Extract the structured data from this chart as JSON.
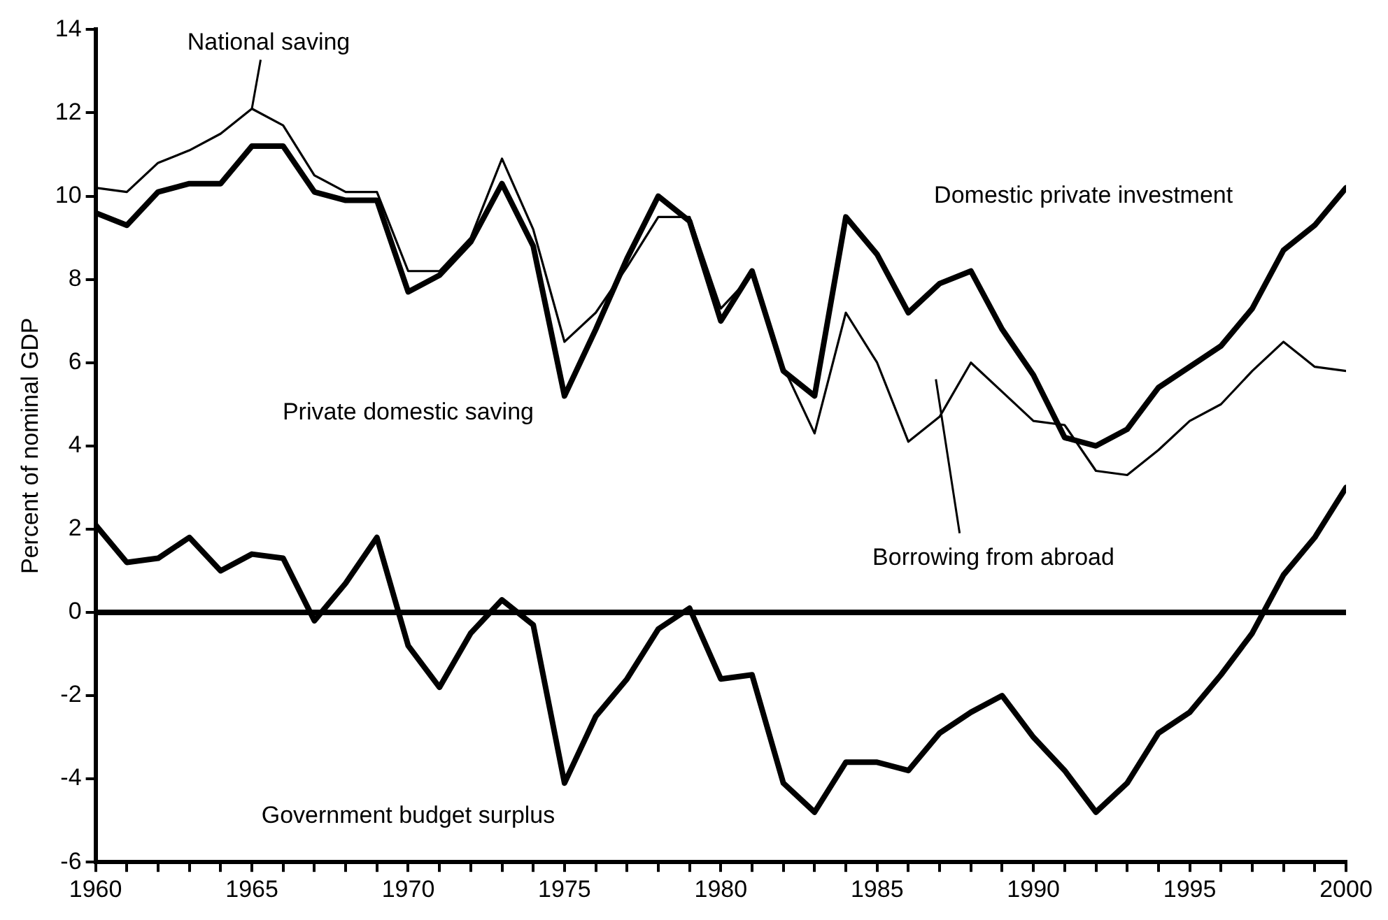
{
  "chart_data": {
    "type": "line",
    "ylabel": "Percent of nominal GDP",
    "x": [
      1960,
      1961,
      1962,
      1963,
      1964,
      1965,
      1966,
      1967,
      1968,
      1969,
      1970,
      1971,
      1972,
      1973,
      1974,
      1975,
      1976,
      1977,
      1978,
      1979,
      1980,
      1981,
      1982,
      1983,
      1984,
      1985,
      1986,
      1987,
      1988,
      1989,
      1990,
      1991,
      1992,
      1993,
      1994,
      1995,
      1996,
      1997,
      1998,
      1999,
      2000
    ],
    "series": [
      {
        "color": "#000000",
        "line_style": "solid",
        "values": [
          10.2,
          10.1,
          10.8,
          11.1,
          11.5,
          12.1,
          11.7,
          10.5,
          10.1,
          10.1,
          8.2,
          8.2,
          9.0,
          10.9,
          9.2,
          6.5,
          7.2,
          8.3,
          9.5,
          9.5,
          7.3,
          8.1,
          5.9,
          4.3,
          7.2,
          6.0,
          4.1,
          4.7,
          6.0,
          5.3,
          4.6,
          4.5,
          3.4,
          3.3,
          3.9,
          4.6,
          5.0,
          5.8,
          6.5,
          5.9,
          5.8
        ]
      },
      {
        "color": "#000000",
        "line_style": "solid",
        "values": [
          9.6,
          9.3,
          10.1,
          10.3,
          10.3,
          11.2,
          11.2,
          10.1,
          9.9,
          9.9,
          7.7,
          8.1,
          8.9,
          10.3,
          8.8,
          5.2,
          6.8,
          8.5,
          10.0,
          9.4,
          7.0,
          8.2,
          5.8,
          5.2,
          9.5,
          8.6,
          7.2,
          7.9,
          8.2,
          6.8,
          5.7,
          4.2,
          4.0,
          4.4,
          5.4,
          5.9,
          6.4,
          7.3,
          8.7,
          9.3,
          10.2
        ]
      },
      {
        "color": "#000000",
        "line_style": "solid",
        "values": [
          2.1,
          1.2,
          1.3,
          1.8,
          1.0,
          1.4,
          1.3,
          -0.2,
          0.7,
          1.8,
          -0.8,
          -1.8,
          -0.5,
          0.3,
          -0.3,
          -4.1,
          -2.5,
          -1.6,
          -0.4,
          0.1,
          -1.6,
          -1.5,
          -4.1,
          -4.8,
          -3.6,
          -3.6,
          -3.8,
          -2.9,
          -2.4,
          -2.0,
          -3.0,
          -3.8,
          -4.8,
          -4.1,
          -2.9,
          -2.4,
          -1.5,
          -0.5,
          0.9,
          1.8,
          3.0
        ]
      }
    ],
    "xlim": [
      1960,
      2000
    ],
    "xticks": [
      1960,
      {
        "value": 1961,
        "label": null
      },
      {
        "value": 1962,
        "label": null
      },
      {
        "value": 1963,
        "label": null
      },
      {
        "value": 1964,
        "label": null
      },
      1965,
      {
        "value": 1966,
        "label": null
      },
      {
        "value": 1967,
        "label": null
      },
      {
        "value": 1968,
        "label": null
      },
      {
        "value": 1969,
        "label": null
      },
      1970,
      {
        "value": 1971,
        "label": null
      },
      {
        "value": 1972,
        "label": null
      },
      {
        "value": 1973,
        "label": null
      },
      {
        "value": 1974,
        "label": null
      },
      1975,
      {
        "value": 1976,
        "label": null
      },
      {
        "value": 1977,
        "label": null
      },
      {
        "value": 1978,
        "label": null
      },
      {
        "value": 1979,
        "label": null
      },
      1980,
      {
        "value": 1981,
        "label": null
      },
      {
        "value": 1982,
        "label": null
      },
      {
        "value": 1983,
        "label": null
      },
      {
        "value": 1984,
        "label": null
      },
      1985,
      {
        "value": 1986,
        "label": null
      },
      {
        "value": 1987,
        "label": null
      },
      {
        "value": 1988,
        "label": null
      },
      {
        "value": 1989,
        "label": null
      },
      1990,
      {
        "value": 1991,
        "label": null
      },
      {
        "value": 1992,
        "label": null
      },
      {
        "value": 1993,
        "label": null
      },
      {
        "value": 1994,
        "label": null
      },
      1995,
      {
        "value": 1996,
        "label": null
      },
      {
        "value": 1997,
        "label": null
      },
      {
        "value": 1998,
        "label": null
      },
      {
        "value": 1999,
        "label": null
      },
      2000
    ],
    "ylim": [
      -6,
      14
    ],
    "yticks": [
      -6,
      -4,
      -2,
      0,
      2,
      4,
      6,
      8,
      10,
      12,
      14
    ],
    "ref_lines": [
      {
        "axis": "y",
        "value": 0,
        "color": "#000000",
        "line_style": "solid"
      }
    ],
    "annotations": [
      {
        "text": "National saving",
        "x": 1965,
        "y": 12.1
      },
      "Domestic private investment",
      "Private domestic saving",
      "Borrowing from abroad",
      "Government budget surplus"
    ],
    "grid": false,
    "legend": false,
    "marker": "none"
  }
}
